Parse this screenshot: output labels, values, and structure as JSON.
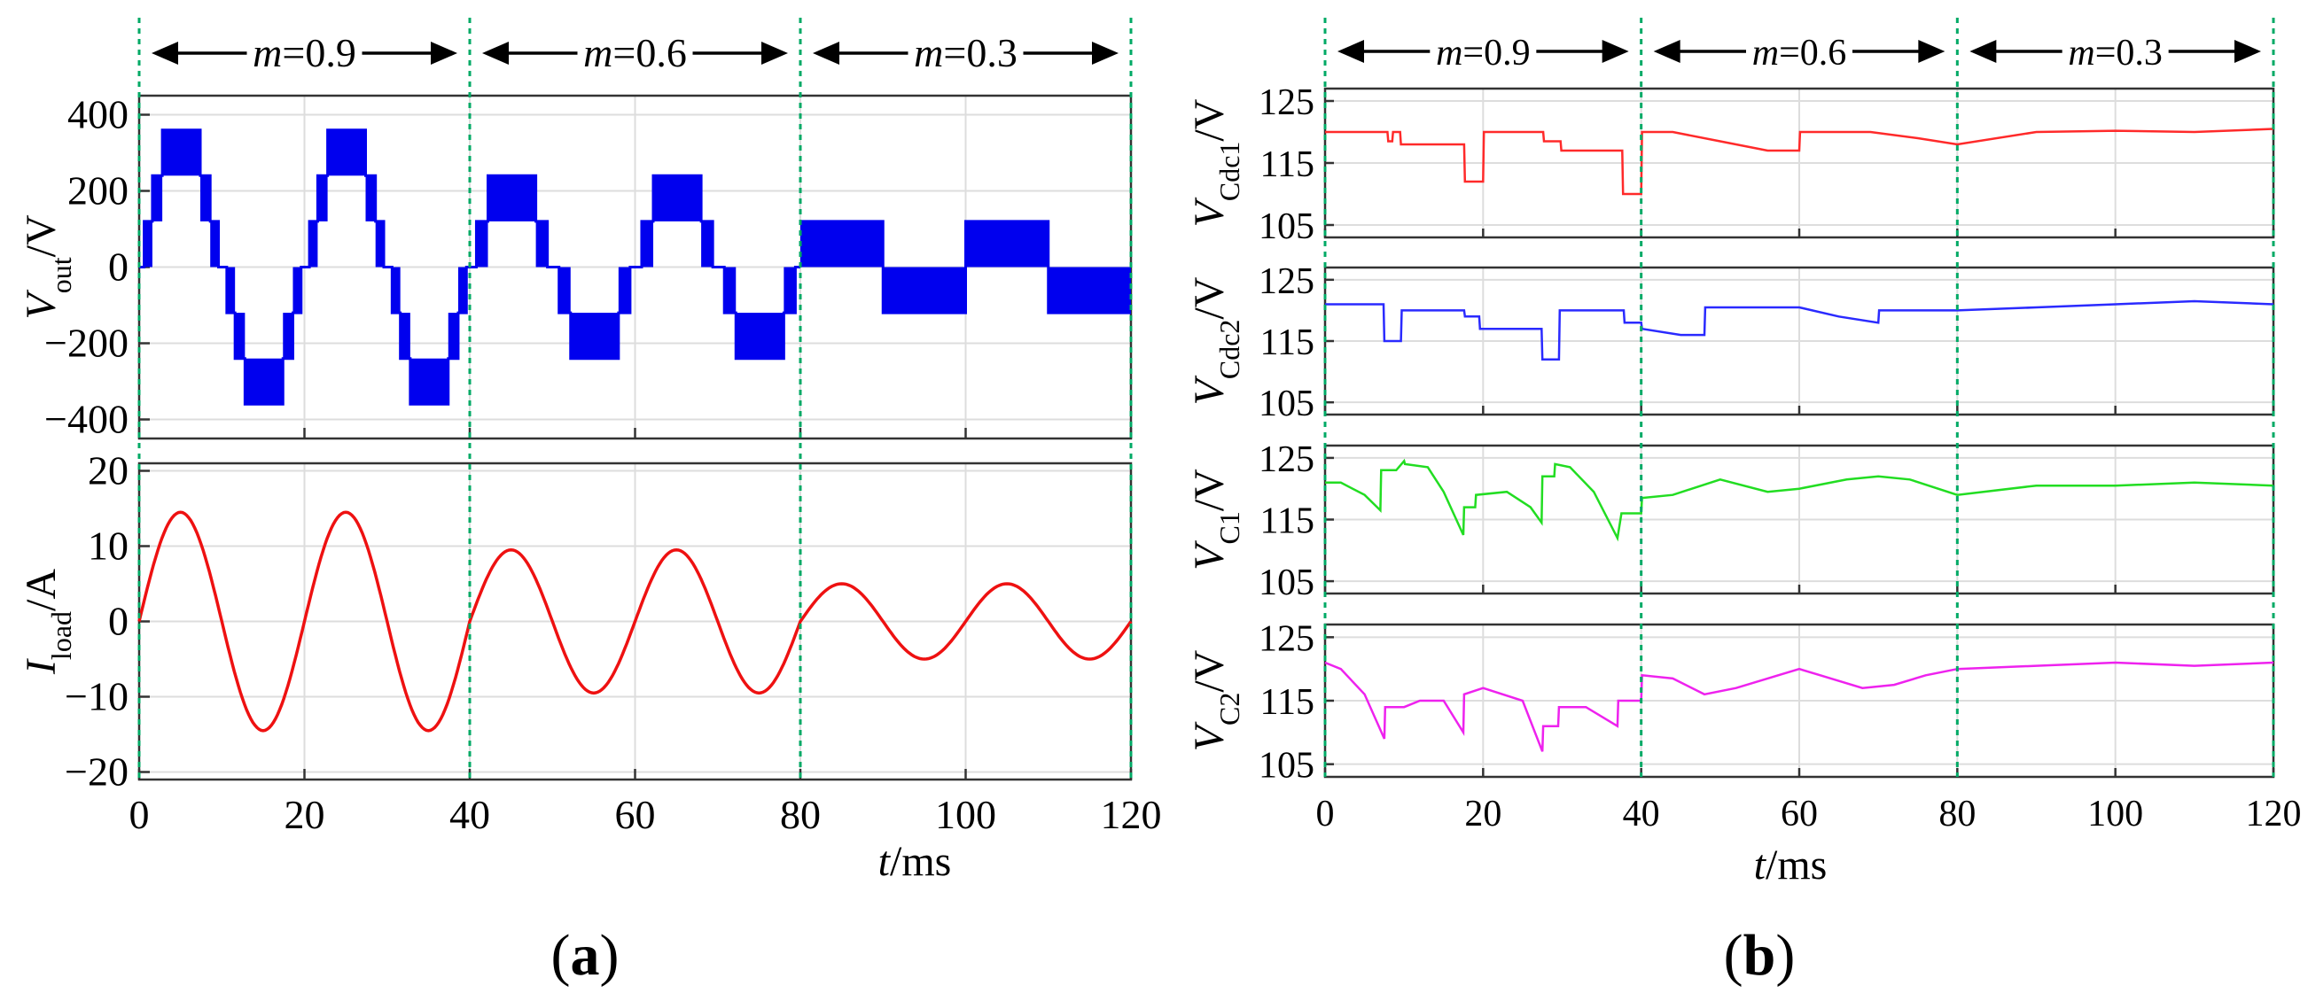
{
  "panels": {
    "a": {
      "label": "(",
      "letter": "a",
      "close": ")"
    },
    "b": {
      "label": "(",
      "letter": "b",
      "close": ")"
    }
  },
  "xaxis": {
    "label_var": "t",
    "label_unit": "/ms",
    "range": [
      0,
      120
    ],
    "ticks": [
      0,
      20,
      40,
      60,
      80,
      100,
      120
    ]
  },
  "segments": [
    {
      "var": "m",
      "value": "=0.9",
      "x0": 0,
      "x1": 40
    },
    {
      "var": "m",
      "value": "=0.6",
      "x0": 40,
      "x1": 80
    },
    {
      "var": "m",
      "value": "=0.3",
      "x0": 80,
      "x1": 120
    }
  ],
  "colors": {
    "vout": "#0000ee",
    "iload": "#ee1111",
    "vcdc1": "#ff2a2a",
    "vcdc2": "#2a2aff",
    "vc1": "#22dd22",
    "vc2": "#ee22ee",
    "divider": "#00aa66",
    "grid": "#dddddd"
  },
  "chart_data": [
    {
      "id": "vout",
      "type": "area",
      "ylabel_var": "V",
      "ylabel_sub": "out",
      "ylabel_unit": "/V",
      "ylim": [
        -450,
        450
      ],
      "yticks": [
        -400,
        -200,
        0,
        200,
        400
      ],
      "grid": true,
      "fundamental_hz": 50,
      "series": [
        {
          "amplitude_levels": [
            120,
            240,
            360
          ],
          "m_segment": 0.9
        },
        {
          "amplitude_levels": [
            120,
            240
          ],
          "m_segment": 0.6
        },
        {
          "amplitude_levels": [
            120
          ],
          "m_segment": 0.3
        }
      ]
    },
    {
      "id": "iload",
      "type": "line",
      "ylabel_var": "I",
      "ylabel_sub": "load",
      "ylabel_unit": "/A",
      "ylim": [
        -21,
        21
      ],
      "yticks": [
        -20,
        -10,
        0,
        10,
        20
      ],
      "grid": true,
      "fundamental_hz": 50,
      "amplitudes": [
        {
          "t0": 0,
          "t1": 40,
          "amp": 14.5
        },
        {
          "t0": 40,
          "t1": 80,
          "amp": 9.5
        },
        {
          "t0": 80,
          "t1": 120,
          "amp": 5
        }
      ]
    },
    {
      "id": "vcdc1",
      "type": "line",
      "ylabel_var": "V",
      "ylabel_sub": "Cdc1",
      "ylabel_unit": "/V",
      "ylim": [
        103,
        127
      ],
      "yticks": [
        105,
        115,
        125
      ],
      "grid": true,
      "x": [
        0,
        7.9,
        8,
        8.5,
        8.6,
        9.5,
        9.6,
        17.6,
        17.7,
        20,
        20.1,
        27.6,
        27.7,
        29.8,
        29.9,
        37.6,
        37.7,
        40,
        40.1,
        44,
        50,
        56,
        60,
        60.1,
        69,
        75,
        80,
        90,
        100,
        110,
        120
      ],
      "y": [
        120,
        120,
        118.5,
        118.5,
        120,
        120,
        118,
        118,
        112,
        112,
        120,
        120,
        118.5,
        118.5,
        117,
        117,
        110,
        110,
        120,
        120,
        118.5,
        117,
        117,
        120,
        120,
        119,
        118,
        120,
        120.2,
        120,
        120.5
      ]
    },
    {
      "id": "vcdc2",
      "type": "line",
      "ylabel_var": "V",
      "ylabel_sub": "Cdc2",
      "ylabel_unit": "/V",
      "ylim": [
        103,
        127
      ],
      "yticks": [
        105,
        115,
        125
      ],
      "grid": true,
      "x": [
        0,
        7.4,
        7.5,
        9.6,
        9.7,
        17.6,
        17.7,
        19.5,
        19.6,
        27.4,
        27.5,
        29.6,
        29.7,
        37.8,
        37.9,
        40,
        40.1,
        45,
        48,
        48.1,
        60,
        65,
        70,
        70.1,
        80,
        90,
        100,
        110,
        120
      ],
      "y": [
        121,
        121,
        115,
        115,
        120,
        120,
        119,
        119,
        117,
        117,
        112,
        112,
        120,
        120,
        118,
        118,
        117,
        116,
        116,
        120.5,
        120.5,
        119,
        118,
        120,
        120,
        120.5,
        121,
        121.5,
        121
      ]
    },
    {
      "id": "vc1",
      "type": "line",
      "ylabel_var": "V",
      "ylabel_sub": "C1",
      "ylabel_unit": "/V",
      "ylim": [
        103,
        127
      ],
      "yticks": [
        105,
        115,
        125
      ],
      "grid": true,
      "x": [
        0,
        2,
        5,
        7,
        7.1,
        9,
        10,
        10.1,
        13,
        15,
        17.5,
        17.6,
        19,
        19.1,
        23,
        26,
        27.4,
        27.5,
        29,
        29.1,
        31,
        34,
        37,
        37.5,
        37.6,
        40,
        40.1,
        44,
        50,
        56,
        60,
        66,
        70,
        74,
        80,
        90,
        100,
        110,
        120
      ],
      "y": [
        121,
        121,
        119,
        116.5,
        123,
        123,
        124.5,
        124,
        123.5,
        119.5,
        112.5,
        117,
        117,
        119,
        119.5,
        117,
        114.5,
        122,
        122,
        124,
        123.5,
        119.5,
        112,
        116,
        116,
        116,
        118.5,
        119,
        121.5,
        119.5,
        120,
        121.5,
        122,
        121.5,
        119,
        120.5,
        120.5,
        121,
        120.5
      ]
    },
    {
      "id": "vc2",
      "type": "line",
      "ylabel_var": "V",
      "ylabel_sub": "C2",
      "ylabel_unit": "/V",
      "ylim": [
        103,
        127
      ],
      "yticks": [
        105,
        115,
        125
      ],
      "grid": true,
      "x": [
        0,
        2,
        5,
        7.5,
        7.6,
        10,
        12,
        15,
        17.5,
        17.6,
        20,
        25,
        27.5,
        27.6,
        29.5,
        29.6,
        33,
        37,
        37.1,
        40,
        40.1,
        44,
        48,
        52,
        56,
        60,
        64,
        68,
        72,
        76,
        80,
        90,
        100,
        110,
        120
      ],
      "y": [
        121,
        120,
        116,
        109,
        114,
        114,
        115,
        115,
        110,
        116,
        117,
        115,
        107,
        111,
        111,
        114,
        114,
        111,
        115,
        115,
        119,
        118.5,
        116,
        117,
        118.5,
        120,
        118.5,
        117,
        117.5,
        119,
        120,
        120.5,
        121,
        120.5,
        121
      ]
    }
  ]
}
